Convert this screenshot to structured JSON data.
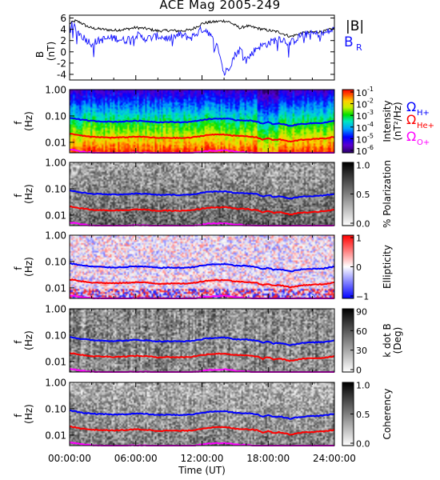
{
  "title": "ACE Mag 2005-249",
  "xaxis": {
    "label": "Time (UT)",
    "ticks": [
      "00:00:00",
      "06:00:00",
      "12:00:00",
      "18:00:00",
      "24:00:00"
    ],
    "range_hours": [
      0,
      24
    ]
  },
  "legend": {
    "b_total": "|B|",
    "b_r": "B",
    "b_r_sub": "R",
    "h": "Ω",
    "h_sub": "H+",
    "he": "Ω",
    "he_sub": "He+",
    "o": "Ω",
    "o_sub": "O+"
  },
  "colors": {
    "b_total": "#000000",
    "b_r": "#1414ff",
    "h_plus": "#0000ff",
    "he_plus": "#ff0000",
    "o_plus": "#ff00ff"
  },
  "chart_data": [
    {
      "type": "line",
      "panel": "field",
      "ylabel": "B",
      "yunit": "(nT)",
      "ylim": [
        -5,
        6.5
      ],
      "yticks": [
        "6",
        "4",
        "2",
        "0",
        "-2",
        "-4"
      ],
      "x_hours": [
        0,
        0.5,
        1,
        1.5,
        2,
        3,
        4,
        5,
        6,
        7,
        8,
        9,
        10,
        11,
        12,
        12.5,
        13,
        13.5,
        14,
        14.5,
        15,
        15.5,
        16,
        17,
        18,
        19,
        20,
        21,
        22,
        23,
        24
      ],
      "series": [
        {
          "name": "|B|",
          "values": [
            5.0,
            5.5,
            5.2,
            4.6,
            4.2,
            4.0,
            3.8,
            4.0,
            4.3,
            4.1,
            3.7,
            3.8,
            3.7,
            3.9,
            5.0,
            5.2,
            5.3,
            5.4,
            5.5,
            5.3,
            4.7,
            4.2,
            4.6,
            4.2,
            3.8,
            3.5,
            2.7,
            3.3,
            3.5,
            3.6,
            4.2
          ]
        },
        {
          "name": "B_R",
          "values": [
            5.0,
            4.2,
            3.0,
            2.2,
            1.5,
            2.2,
            2.5,
            2.0,
            3.0,
            2.3,
            2.8,
            2.3,
            3.0,
            2.5,
            4.0,
            3.8,
            2.0,
            0.5,
            -4.0,
            -2.5,
            -0.5,
            0.5,
            -1.5,
            0.8,
            1.5,
            2.5,
            1.5,
            3.0,
            3.2,
            3.2,
            4.0
          ]
        }
      ]
    },
    {
      "type": "heatmap",
      "panel": "intensity",
      "ylabel": "f",
      "yunit": "(Hz)",
      "yscale": "log",
      "ylim": [
        0.004,
        1.0
      ],
      "yticks": [
        "1.00",
        "0.10",
        "0.01"
      ],
      "colorbar": {
        "label": "Intensity",
        "unit": "(nT²/Hz)",
        "ticks": [
          "10",
          "10",
          "10",
          "10",
          "10",
          "10"
        ],
        "tick_exponents": [
          "1",
          "2",
          "3",
          "4",
          "5",
          "6"
        ],
        "tick_signs": "-"
      },
      "colormap": "rainbow"
    },
    {
      "type": "heatmap",
      "panel": "polarization",
      "ylabel": "f",
      "yunit": "(Hz)",
      "yscale": "log",
      "ylim": [
        0.004,
        1.0
      ],
      "yticks": [
        "1.00",
        "0.10",
        "0.01"
      ],
      "colorbar": {
        "label": "% Polarization",
        "ticks": [
          "1.0",
          "0.5",
          "0.0"
        ]
      },
      "colormap": "gray_reversed"
    },
    {
      "type": "heatmap",
      "panel": "ellipticity",
      "ylabel": "f",
      "yunit": "(Hz)",
      "yscale": "log",
      "ylim": [
        0.004,
        1.0
      ],
      "yticks": [
        "1.00",
        "0.10",
        "0.01"
      ],
      "colorbar": {
        "label": "Ellipticity",
        "ticks": [
          "1",
          "0",
          "−1"
        ]
      },
      "colormap": "blue_white_red"
    },
    {
      "type": "heatmap",
      "panel": "k_dot_b",
      "ylabel": "f",
      "yunit": "(Hz)",
      "yscale": "log",
      "ylim": [
        0.004,
        1.0
      ],
      "yticks": [
        "1.00",
        "0.10",
        "0.01"
      ],
      "colorbar": {
        "label": "k dot B",
        "unit": "(Deg)",
        "ticks": [
          "90",
          "60",
          "30",
          "0"
        ]
      },
      "colormap": "gray_reversed"
    },
    {
      "type": "heatmap",
      "panel": "coherency",
      "ylabel": "f",
      "yunit": "(Hz)",
      "yscale": "log",
      "ylim": [
        0.004,
        1.0
      ],
      "yticks": [
        "1.00",
        "0.10",
        "0.01"
      ],
      "colorbar": {
        "label": "Coherency",
        "ticks": [
          "1.0",
          "0.5",
          "0.0"
        ]
      },
      "colormap": "gray_reversed"
    }
  ],
  "gyrofrequency_lines": {
    "x_hours": [
      0,
      0.5,
      1,
      2,
      3,
      4,
      5,
      6,
      7,
      8,
      9,
      10,
      11,
      12,
      12.5,
      13,
      13.5,
      14,
      14.5,
      15,
      16,
      17,
      17.5,
      18,
      18.5,
      19,
      20,
      21,
      22,
      23,
      24
    ],
    "h_plus_hz": [
      0.085,
      0.08,
      0.072,
      0.065,
      0.062,
      0.06,
      0.062,
      0.066,
      0.063,
      0.058,
      0.059,
      0.058,
      0.06,
      0.07,
      0.075,
      0.078,
      0.079,
      0.08,
      0.076,
      0.07,
      0.068,
      0.062,
      0.05,
      0.058,
      0.048,
      0.052,
      0.042,
      0.05,
      0.053,
      0.055,
      0.064
    ],
    "he_plus_hz": [
      0.021,
      0.02,
      0.018,
      0.016,
      0.0155,
      0.015,
      0.0155,
      0.0165,
      0.0158,
      0.0145,
      0.0148,
      0.0145,
      0.015,
      0.0175,
      0.019,
      0.0195,
      0.0198,
      0.02,
      0.019,
      0.0175,
      0.017,
      0.0155,
      0.0125,
      0.0145,
      0.012,
      0.013,
      0.0105,
      0.0125,
      0.0132,
      0.0138,
      0.016
    ],
    "o_plus_hz": [
      0.0053,
      0.005,
      0.0045,
      0.0041,
      0.0039,
      0.0038,
      0.0039,
      0.0041,
      0.004,
      0.0037,
      0.0037,
      0.0037,
      0.0038,
      0.0044,
      0.0047,
      0.0049,
      0.0049,
      0.005,
      0.0048,
      0.0044,
      0.0042,
      0.0039,
      0.0032,
      0.0036,
      0.003,
      0.0033,
      0.0027,
      0.0031,
      0.0033,
      0.0035,
      0.004
    ]
  }
}
